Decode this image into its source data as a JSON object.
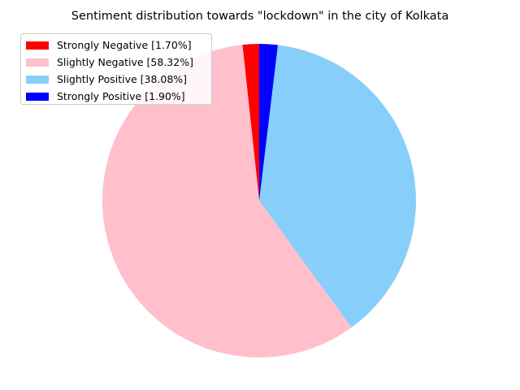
{
  "chart_data": {
    "type": "pie",
    "title": "Sentiment distribution towards \"lockdown\" in the city of Kolkata",
    "legend_position": "top-left",
    "start_angle_deg": 90,
    "direction": "counterclockwise",
    "slices": [
      {
        "label": "Strongly Negative [1.70%]",
        "value": 1.7,
        "color": "#ff0000"
      },
      {
        "label": "Slightly Negative [58.32%]",
        "value": 58.32,
        "color": "#ffc0cb"
      },
      {
        "label": "Slightly Positive [38.08%]",
        "value": 38.08,
        "color": "#87cefa"
      },
      {
        "label": "Strongly Positive [1.90%]",
        "value": 1.9,
        "color": "#0000ff"
      }
    ]
  }
}
